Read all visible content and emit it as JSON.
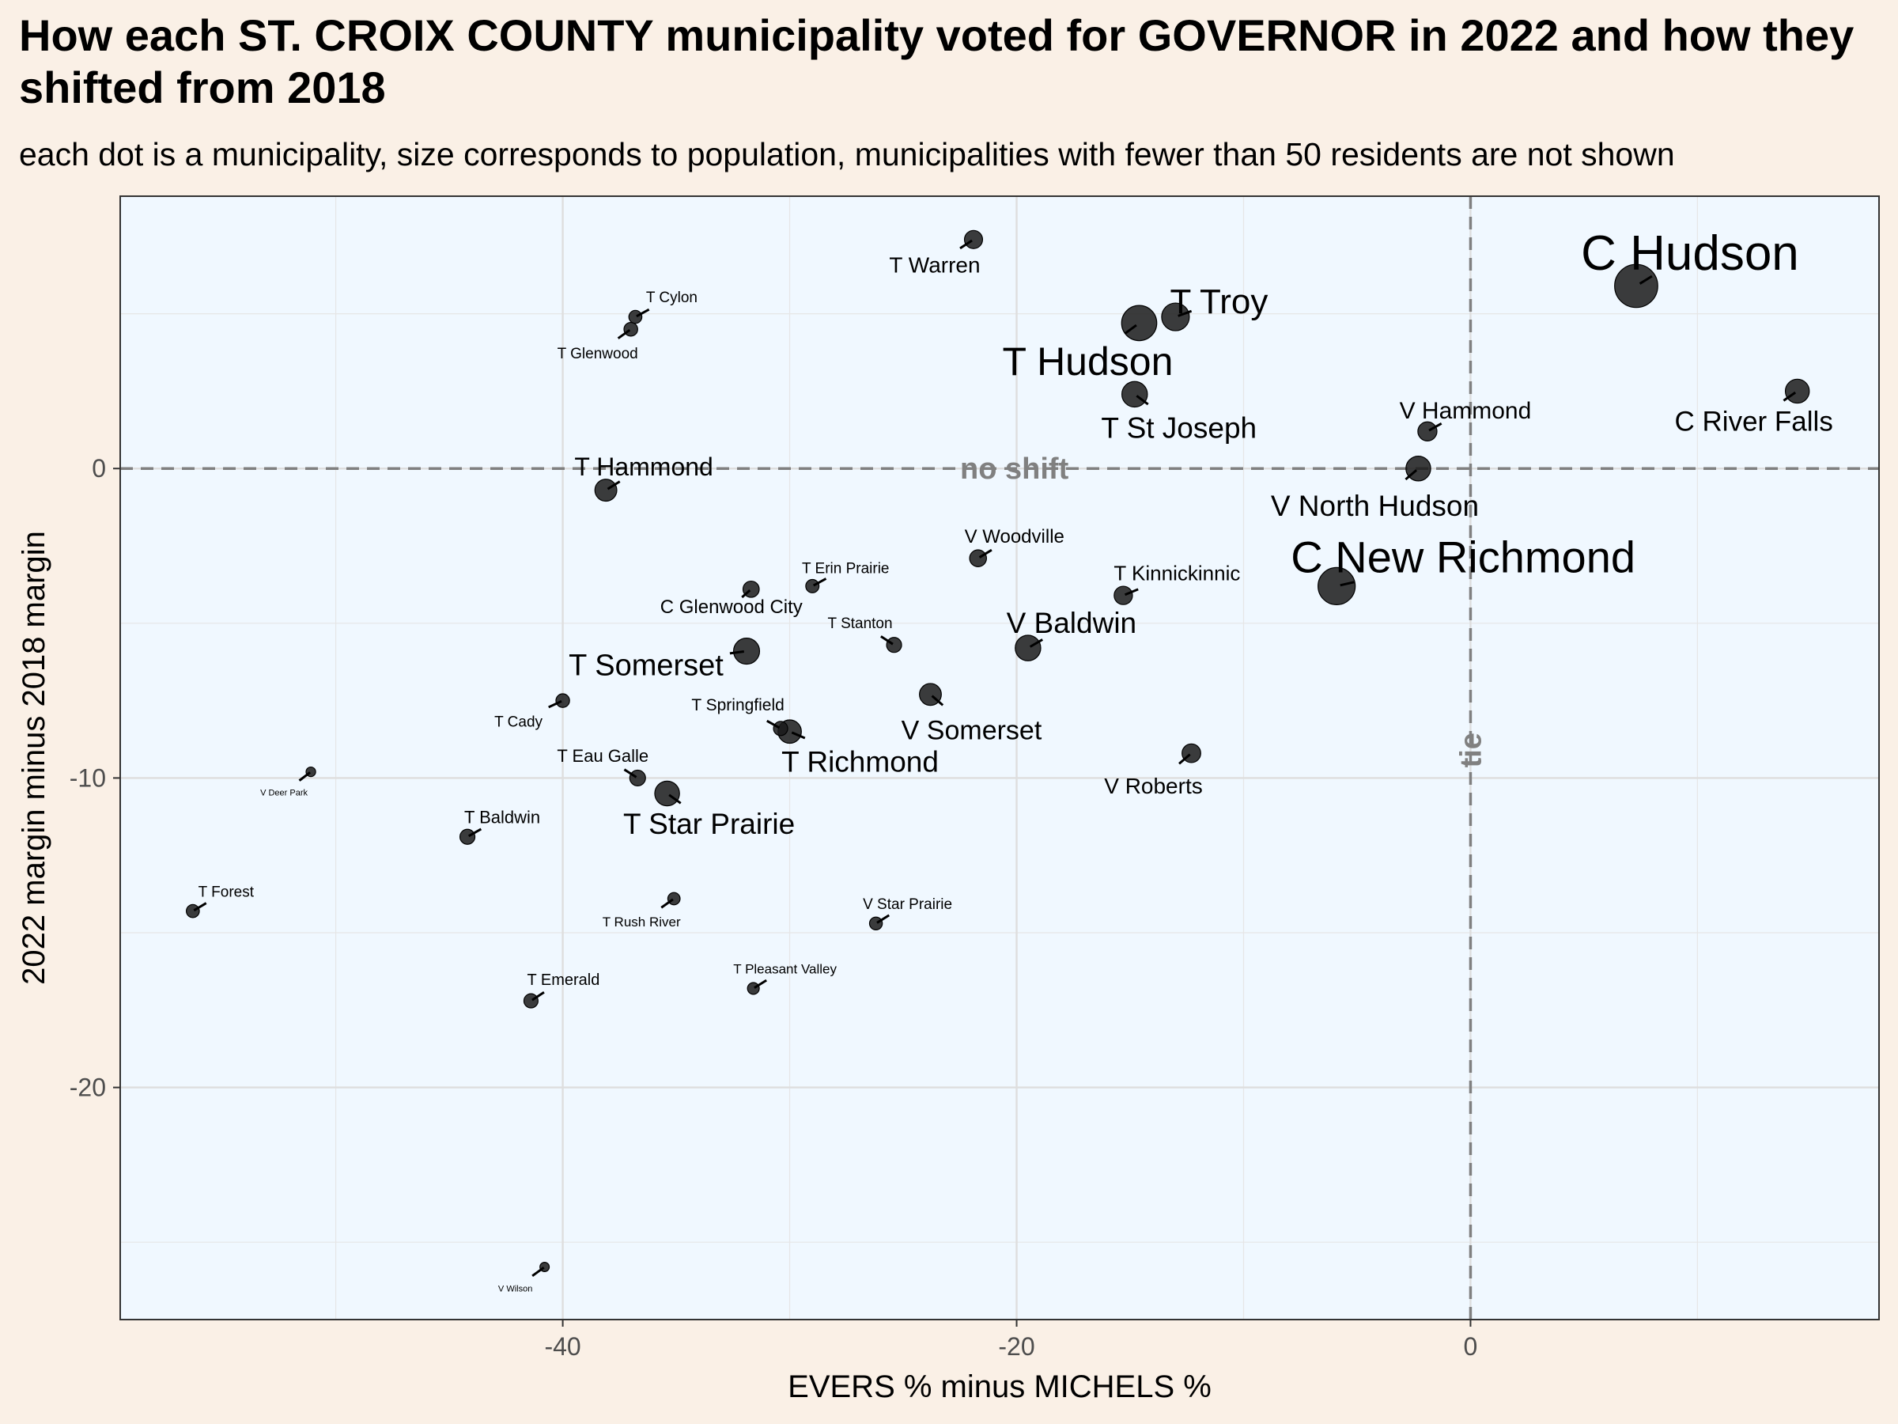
{
  "page": {
    "title": "How each ST. CROIX COUNTY municipality voted for GOVERNOR in 2022 and how they shifted from 2018",
    "subtitle": "each dot is a municipality, size corresponds to population, municipalities with fewer than 50 residents are not shown"
  },
  "colors": {
    "page_background": "#faf0e6",
    "panel_background": "#f0f8ff",
    "point_fill": "#1a1a1a",
    "reference_line": "#808080"
  },
  "chart_data": {
    "type": "scatter",
    "xlabel": "EVERS % minus MICHELS %",
    "ylabel": "2022 margin minus 2018 margin",
    "xlim": [
      -59.5,
      18
    ],
    "ylim": [
      -27.5,
      8.8
    ],
    "x_ticks": [
      -40,
      -20,
      0
    ],
    "y_ticks": [
      -20,
      -10,
      0
    ],
    "grid": true,
    "reference_lines": [
      {
        "axis": "y",
        "value": 0,
        "label": "no shift"
      },
      {
        "axis": "x",
        "value": 0,
        "label": "tie"
      }
    ],
    "points": [
      {
        "name": "C Hudson",
        "x": 7.3,
        "y": 5.9,
        "population": 14000
      },
      {
        "name": "T Troy",
        "x": -13.0,
        "y": 4.9,
        "population": 5000
      },
      {
        "name": "T Hudson",
        "x": -14.6,
        "y": 4.7,
        "population": 8800
      },
      {
        "name": "T St Joseph",
        "x": -14.8,
        "y": 2.4,
        "population": 4100
      },
      {
        "name": "C River Falls",
        "x": 14.4,
        "y": 2.5,
        "population": 3500
      },
      {
        "name": "V Hammond",
        "x": -1.9,
        "y": 1.2,
        "population": 1950
      },
      {
        "name": "V North Hudson",
        "x": -2.3,
        "y": 0.0,
        "population": 3800
      },
      {
        "name": "C New Richmond",
        "x": -5.9,
        "y": -3.8,
        "population": 10000
      },
      {
        "name": "T Warren",
        "x": -21.9,
        "y": 7.4,
        "population": 1700
      },
      {
        "name": "T Cylon",
        "x": -36.8,
        "y": 4.9,
        "population": 650
      },
      {
        "name": "T Glenwood",
        "x": -37.0,
        "y": 4.5,
        "population": 760
      },
      {
        "name": "T Hammond",
        "x": -38.1,
        "y": -0.7,
        "population": 2800
      },
      {
        "name": "V Woodville",
        "x": -21.7,
        "y": -2.9,
        "population": 1400
      },
      {
        "name": "T Erin Prairie",
        "x": -29.0,
        "y": -3.8,
        "population": 690
      },
      {
        "name": "T Kinnickinnic",
        "x": -15.3,
        "y": -4.1,
        "population": 1750
      },
      {
        "name": "C Glenwood City",
        "x": -31.7,
        "y": -3.9,
        "population": 1250
      },
      {
        "name": "T Stanton",
        "x": -25.4,
        "y": -5.7,
        "population": 1000
      },
      {
        "name": "V Baldwin",
        "x": -19.5,
        "y": -5.8,
        "population": 4100
      },
      {
        "name": "T Somerset",
        "x": -31.9,
        "y": -5.9,
        "population": 4300
      },
      {
        "name": "V Somerset",
        "x": -23.8,
        "y": -7.3,
        "population": 2800
      },
      {
        "name": "T Cady",
        "x": -40.0,
        "y": -7.5,
        "population": 750
      },
      {
        "name": "T Springfield",
        "x": -30.4,
        "y": -8.4,
        "population": 850
      },
      {
        "name": "T Richmond",
        "x": -30.0,
        "y": -8.5,
        "population": 3300
      },
      {
        "name": "V Roberts",
        "x": -12.3,
        "y": -9.2,
        "population": 1850
      },
      {
        "name": "T Eau Galle",
        "x": -36.7,
        "y": -10.0,
        "population": 1150
      },
      {
        "name": "T Star Prairie",
        "x": -35.4,
        "y": -10.5,
        "population": 3800
      },
      {
        "name": "V Deer Park",
        "x": -51.1,
        "y": -9.8,
        "population": 220
      },
      {
        "name": "T Baldwin",
        "x": -44.2,
        "y": -11.9,
        "population": 1000
      },
      {
        "name": "T Forest",
        "x": -56.3,
        "y": -14.3,
        "population": 650
      },
      {
        "name": "T Rush River",
        "x": -35.1,
        "y": -13.9,
        "population": 540
      },
      {
        "name": "V Star Prairie",
        "x": -26.2,
        "y": -14.7,
        "population": 620
      },
      {
        "name": "T Pleasant Valley",
        "x": -31.6,
        "y": -16.8,
        "population": 470
      },
      {
        "name": "T Emerald",
        "x": -41.4,
        "y": -17.2,
        "population": 840
      },
      {
        "name": "V Wilson",
        "x": -40.8,
        "y": -25.8,
        "population": 200
      }
    ]
  }
}
